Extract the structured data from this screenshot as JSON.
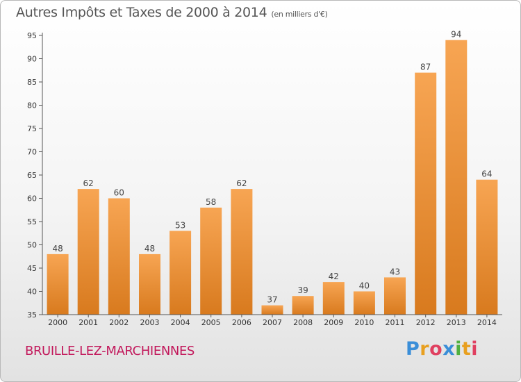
{
  "chart_data": {
    "type": "bar",
    "title": "Autres Impôts et Taxes de 2000 à 2014",
    "subtitle": "(en milliers d'€)",
    "categories": [
      "2000",
      "2001",
      "2002",
      "2003",
      "2004",
      "2005",
      "2006",
      "2007",
      "2008",
      "2009",
      "2010",
      "2011",
      "2012",
      "2013",
      "2014"
    ],
    "values": [
      48,
      62,
      60,
      48,
      53,
      58,
      62,
      37,
      39,
      42,
      40,
      43,
      87,
      94,
      64
    ],
    "ylim": [
      35,
      95
    ],
    "yticks": [
      "35",
      "40",
      "45",
      "50",
      "55",
      "60",
      "65",
      "70",
      "75",
      "80",
      "85",
      "90",
      "95"
    ],
    "xlabel": "",
    "ylabel": "",
    "grid": false,
    "bar_color_top": "#f7a553",
    "bar_color_bottom": "#d87a1e"
  },
  "footer": {
    "location": "BRUILLE-LEZ-MARCHIENNES",
    "brand_letters": [
      "P",
      "r",
      "o",
      "x",
      "i",
      "t",
      "i"
    ],
    "brand_colors": [
      "#3a8ed8",
      "#e8a020",
      "#e04060",
      "#3a8ed8",
      "#50b040",
      "#e8a020",
      "#e04060"
    ]
  }
}
